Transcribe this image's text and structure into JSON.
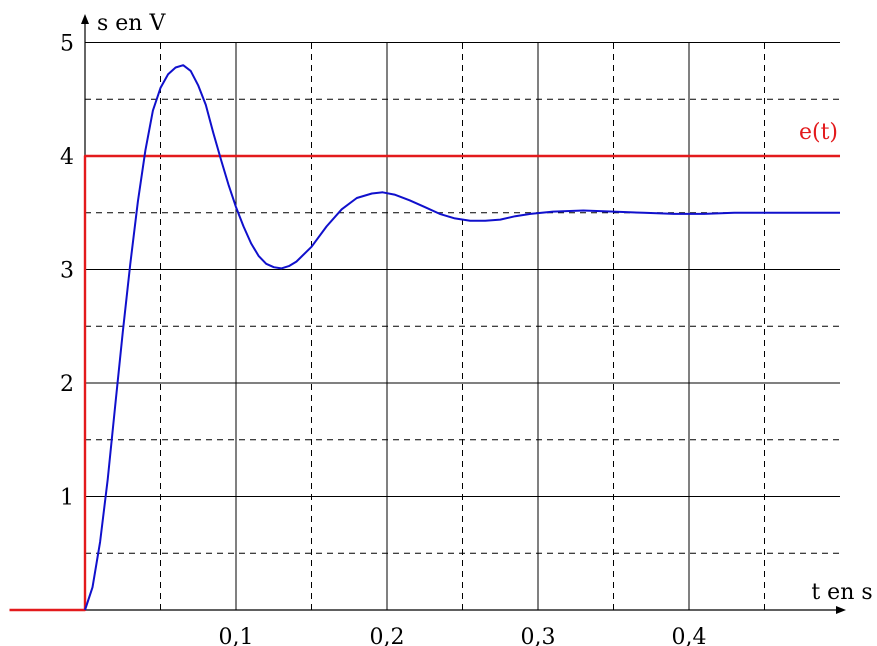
{
  "chart_data": {
    "type": "line",
    "xlabel": "t en s",
    "ylabel": "s en V",
    "xlim": [
      -0.05,
      0.5
    ],
    "ylim": [
      0,
      5
    ],
    "x_ticks": [
      {
        "value": 0.1,
        "label": "0,1"
      },
      {
        "value": 0.2,
        "label": "0,2"
      },
      {
        "value": 0.3,
        "label": "0,3"
      },
      {
        "value": 0.4,
        "label": "0,4"
      }
    ],
    "y_ticks": [
      {
        "value": 1,
        "label": "1"
      },
      {
        "value": 2,
        "label": "2"
      },
      {
        "value": 3,
        "label": "3"
      },
      {
        "value": 4,
        "label": "4"
      },
      {
        "value": 5,
        "label": "5"
      }
    ],
    "grid": {
      "solid_x": [
        0.1,
        0.2,
        0.3,
        0.4
      ],
      "dashed_x": [
        0.05,
        0.15,
        0.25,
        0.35,
        0.45
      ],
      "solid_y": [
        1,
        2,
        3,
        4,
        5
      ],
      "dashed_y": [
        0.5,
        1.5,
        2.5,
        3.5,
        4.5
      ]
    },
    "series": [
      {
        "name": "e(t)",
        "color": "#e31a1c",
        "points": [
          [
            -0.05,
            0
          ],
          [
            0,
            0
          ],
          [
            0,
            4
          ],
          [
            0.5,
            4
          ]
        ]
      },
      {
        "color": "#1010cc",
        "points": [
          [
            0,
            0
          ],
          [
            0.005,
            0.2
          ],
          [
            0.01,
            0.6
          ],
          [
            0.015,
            1.15
          ],
          [
            0.02,
            1.8
          ],
          [
            0.025,
            2.45
          ],
          [
            0.03,
            3.05
          ],
          [
            0.035,
            3.6
          ],
          [
            0.04,
            4.05
          ],
          [
            0.045,
            4.4
          ],
          [
            0.05,
            4.6
          ],
          [
            0.055,
            4.72
          ],
          [
            0.06,
            4.78
          ],
          [
            0.065,
            4.8
          ],
          [
            0.07,
            4.75
          ],
          [
            0.075,
            4.62
          ],
          [
            0.08,
            4.45
          ],
          [
            0.085,
            4.2
          ],
          [
            0.09,
            3.97
          ],
          [
            0.095,
            3.75
          ],
          [
            0.1,
            3.55
          ],
          [
            0.105,
            3.38
          ],
          [
            0.11,
            3.23
          ],
          [
            0.115,
            3.12
          ],
          [
            0.12,
            3.05
          ],
          [
            0.125,
            3.02
          ],
          [
            0.13,
            3.01
          ],
          [
            0.135,
            3.03
          ],
          [
            0.14,
            3.07
          ],
          [
            0.15,
            3.2
          ],
          [
            0.16,
            3.38
          ],
          [
            0.17,
            3.53
          ],
          [
            0.18,
            3.63
          ],
          [
            0.19,
            3.67
          ],
          [
            0.197,
            3.68
          ],
          [
            0.205,
            3.66
          ],
          [
            0.215,
            3.61
          ],
          [
            0.225,
            3.55
          ],
          [
            0.235,
            3.49
          ],
          [
            0.245,
            3.45
          ],
          [
            0.255,
            3.43
          ],
          [
            0.265,
            3.43
          ],
          [
            0.275,
            3.44
          ],
          [
            0.285,
            3.47
          ],
          [
            0.295,
            3.49
          ],
          [
            0.31,
            3.51
          ],
          [
            0.33,
            3.52
          ],
          [
            0.35,
            3.51
          ],
          [
            0.37,
            3.5
          ],
          [
            0.39,
            3.49
          ],
          [
            0.41,
            3.49
          ],
          [
            0.43,
            3.5
          ],
          [
            0.45,
            3.5
          ],
          [
            0.47,
            3.5
          ],
          [
            0.5,
            3.5
          ]
        ]
      }
    ]
  }
}
